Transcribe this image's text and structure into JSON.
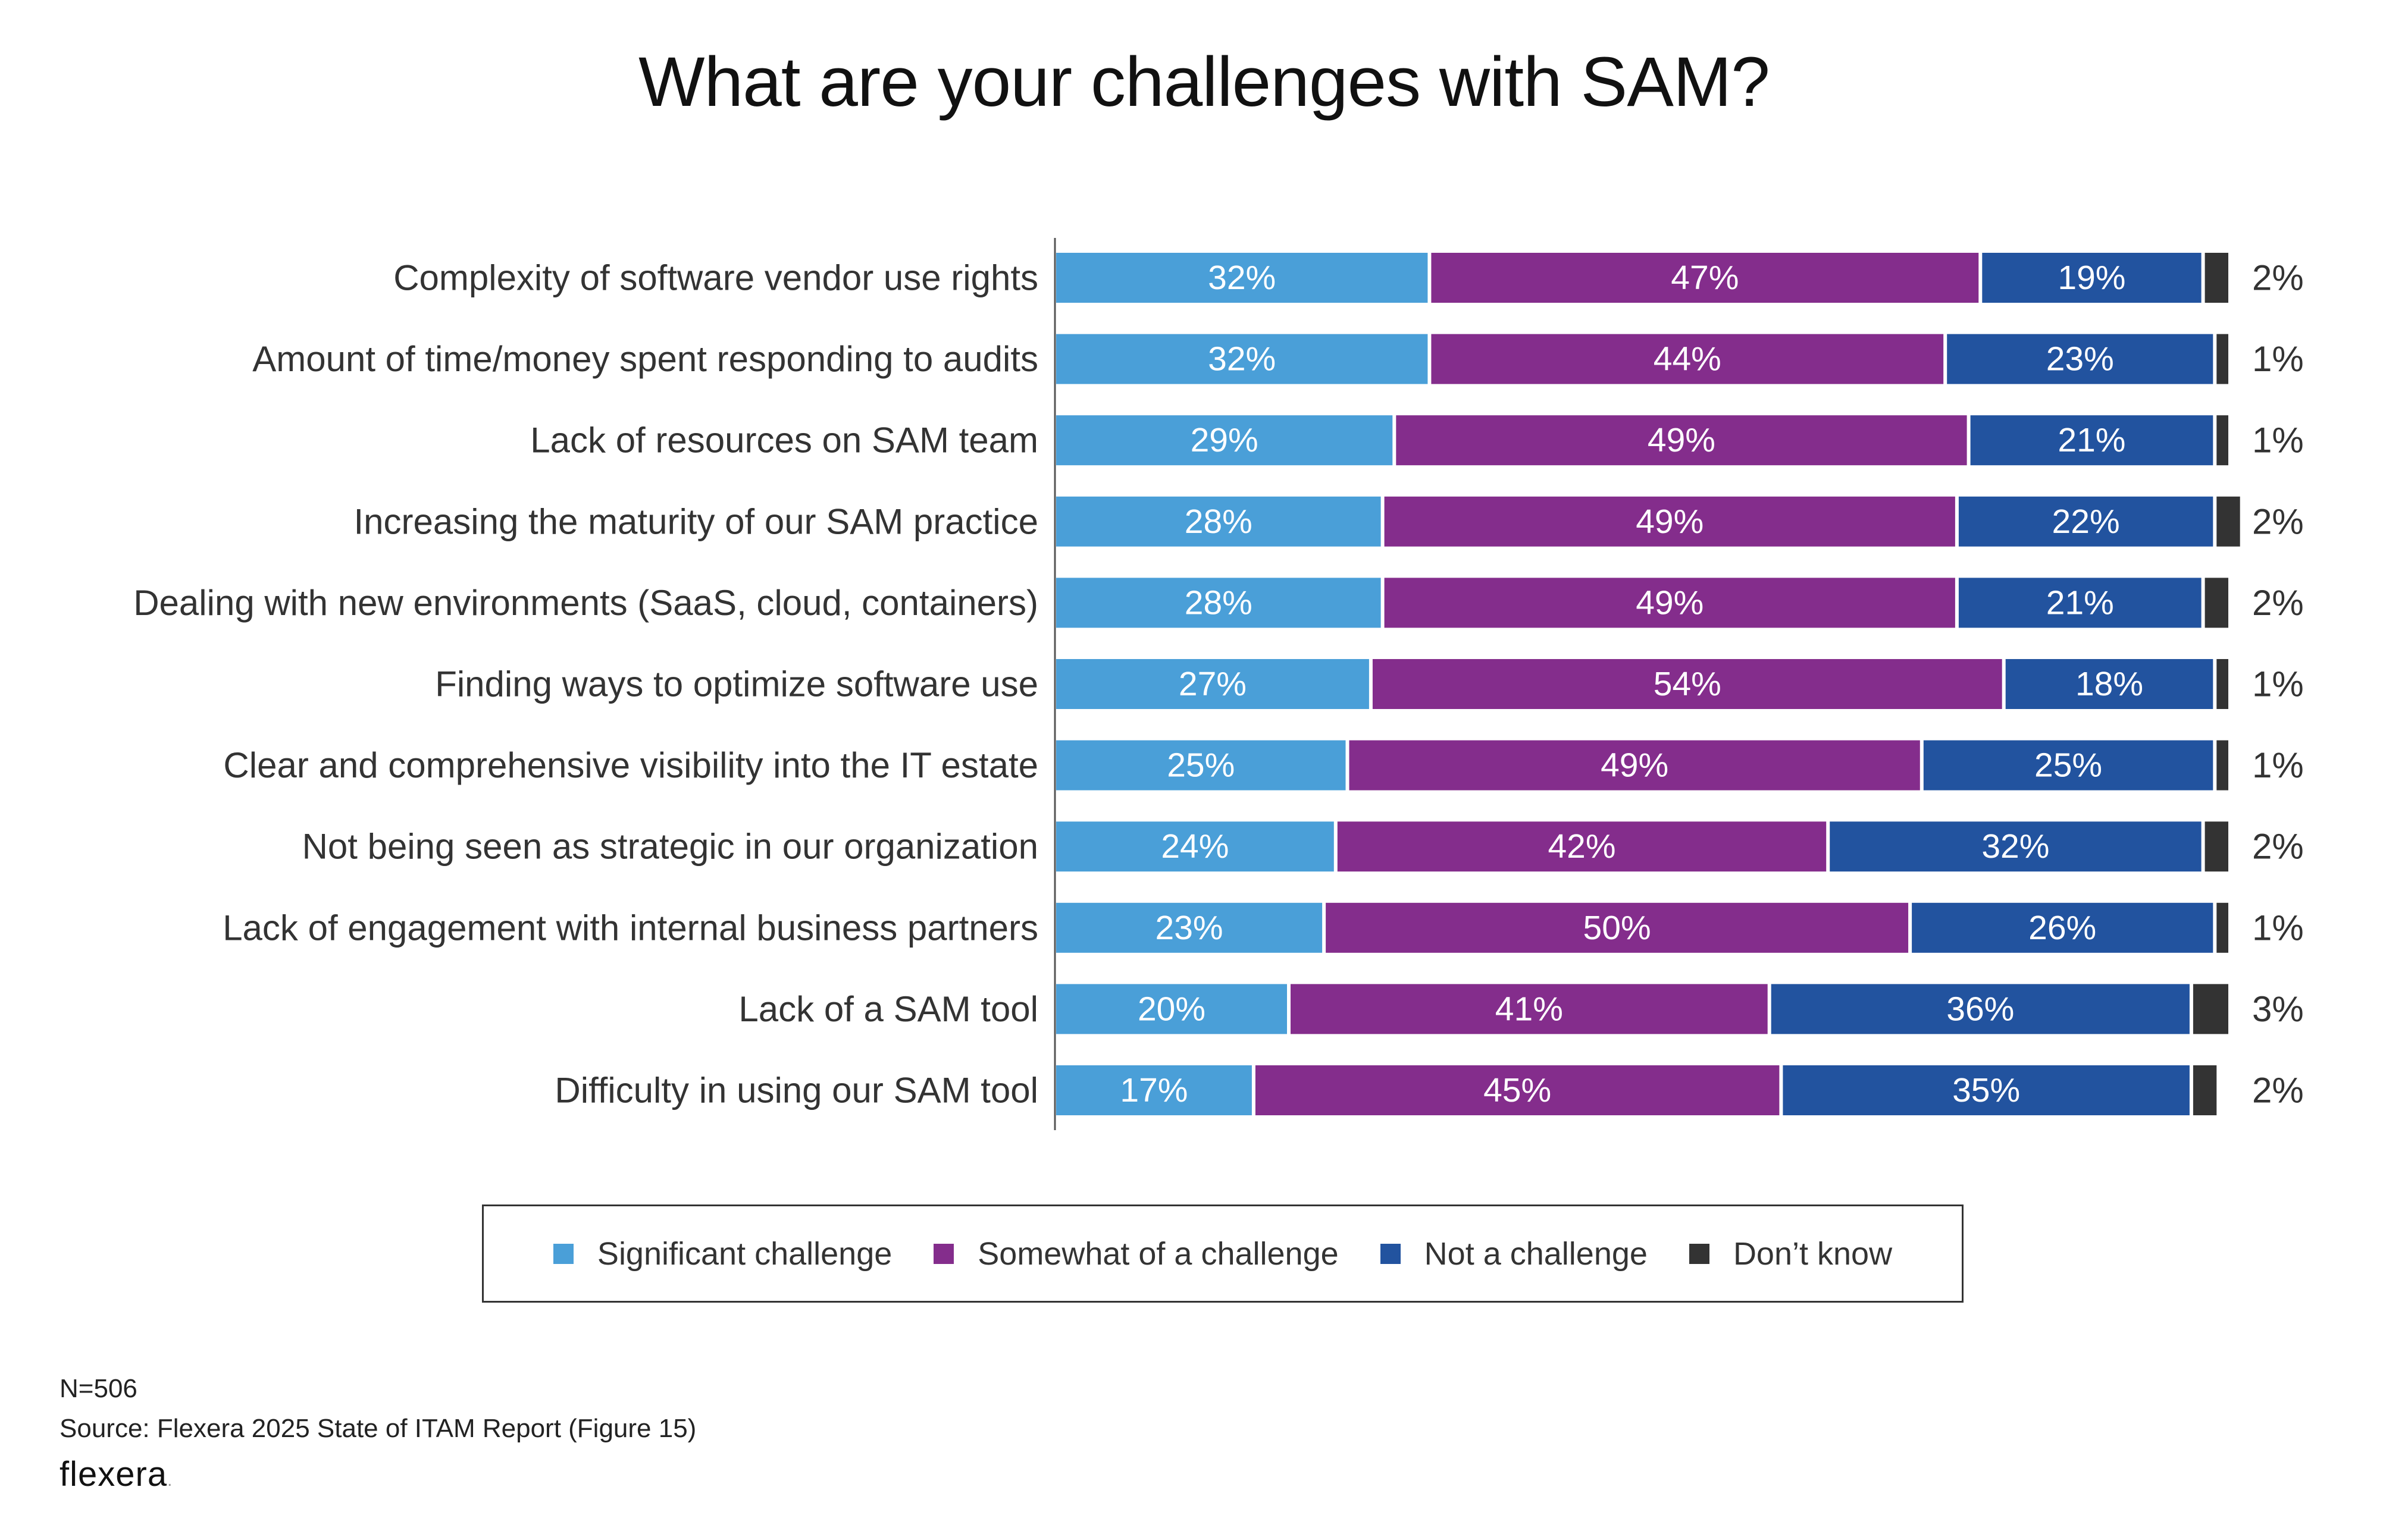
{
  "chart_data": {
    "type": "bar",
    "orientation": "horizontal",
    "stacked": true,
    "title": "What are your challenges with SAM?",
    "categories": [
      "Complexity of software vendor use rights",
      "Amount of time/money spent responding to audits",
      "Lack of resources on SAM team",
      "Increasing the maturity of our SAM practice",
      "Dealing with new environments (SaaS, cloud, containers)",
      "Finding ways to optimize software use",
      "Clear and comprehensive visibility into the IT estate",
      "Not being seen as strategic in our organization",
      "Lack of engagement with internal business partners",
      "Lack of a SAM tool",
      "Difficulty in using our SAM tool"
    ],
    "series": [
      {
        "name": "Significant challenge",
        "color": "#4a9fd8",
        "values": [
          32,
          32,
          29,
          28,
          28,
          27,
          25,
          24,
          23,
          20,
          17
        ]
      },
      {
        "name": "Somewhat of a challenge",
        "color": "#842d8c",
        "values": [
          47,
          44,
          49,
          49,
          49,
          54,
          49,
          42,
          50,
          41,
          45
        ]
      },
      {
        "name": "Not a challenge",
        "color": "#22539f",
        "values": [
          19,
          23,
          21,
          22,
          21,
          18,
          25,
          32,
          26,
          36,
          35
        ]
      },
      {
        "name": "Don’t know",
        "color": "#333333",
        "values": [
          2,
          1,
          1,
          2,
          2,
          1,
          1,
          2,
          1,
          3,
          2
        ]
      }
    ],
    "value_suffix": "%",
    "xlim": [
      0,
      100
    ],
    "legend_position": "bottom",
    "grid": false
  },
  "footnotes": {
    "n": "N=506",
    "source": "Source: Flexera 2025 State of ITAM Report (Figure 15)"
  },
  "brand": {
    "name": "flexera",
    "mark": "."
  }
}
